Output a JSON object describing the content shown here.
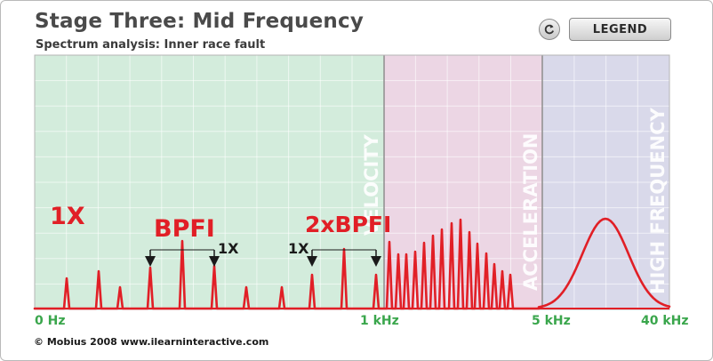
{
  "header": {
    "title": "Stage Three: Mid Frequency",
    "subtitle": "Spectrum analysis: Inner race fault"
  },
  "controls": {
    "reset_icon": "refresh-icon",
    "legend_label": "LEGEND"
  },
  "regions": [
    {
      "name": "VELOCITY",
      "color": "#d3ecdc"
    },
    {
      "name": "ACCELERATION",
      "color": "#ecd6e4"
    },
    {
      "name": "HIGH FREQUENCY",
      "color": "#d9d9ea"
    }
  ],
  "x_axis_labels": [
    "0 Hz",
    "1 kHz",
    "5 kHz",
    "40 kHz"
  ],
  "annotations": {
    "one_x": "1X",
    "bpfi": "BPFI",
    "two_x_bpfi": "2xBPFI",
    "bpfi_spacing": "1X",
    "two_x_bpfi_spacing": "1X"
  },
  "colors": {
    "spectrum": "#e11f26",
    "axis_labels": "#3aa64c",
    "marker": "#1a1a1a"
  },
  "footer": {
    "copyright": "© Mobius 2008 www.ilearninteractive.com"
  }
}
